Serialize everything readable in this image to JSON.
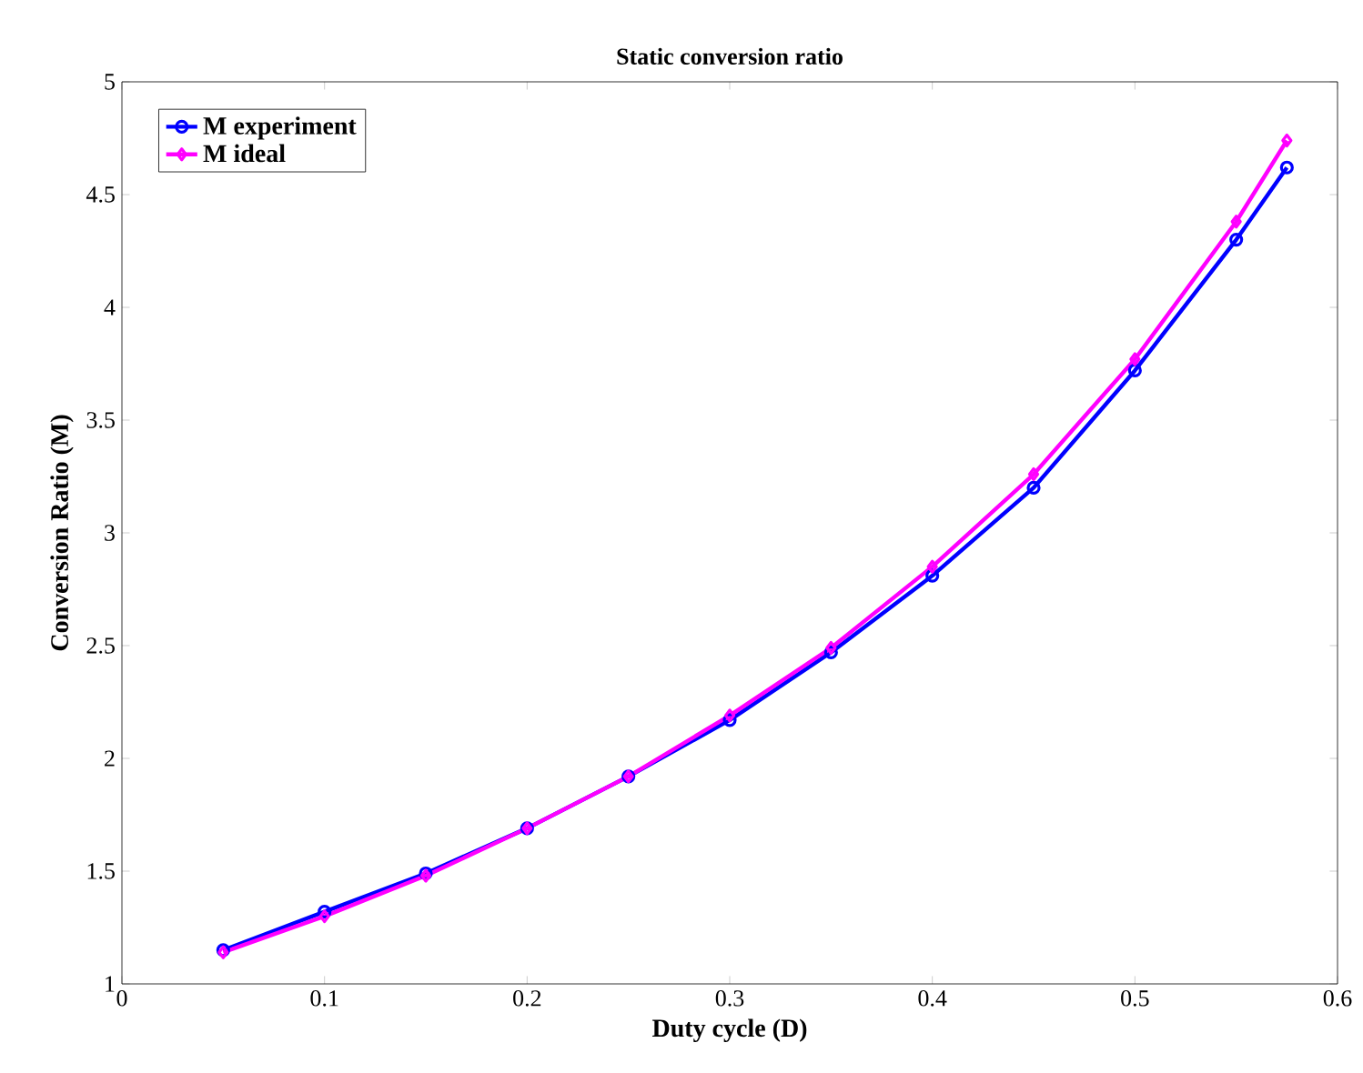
{
  "chart_data": {
    "type": "line",
    "title": "Static conversion ratio",
    "xlabel": "Duty cycle (D)",
    "ylabel": "Conversion Ratio (M)",
    "x": [
      0.05,
      0.1,
      0.15,
      0.2,
      0.25,
      0.3,
      0.35,
      0.4,
      0.45,
      0.5,
      0.55,
      0.575
    ],
    "series": [
      {
        "name": "M experiment",
        "color": "#0000ff",
        "marker": "circle",
        "values": [
          1.15,
          1.32,
          1.49,
          1.69,
          1.92,
          2.17,
          2.47,
          2.81,
          3.2,
          3.72,
          4.3,
          4.62
        ]
      },
      {
        "name": "M ideal",
        "color": "#ff00ff",
        "marker": "diamond",
        "values": [
          1.14,
          1.3,
          1.48,
          1.69,
          1.92,
          2.19,
          2.49,
          2.85,
          3.26,
          3.77,
          4.38,
          4.74
        ]
      }
    ],
    "xlim": [
      0,
      0.6
    ],
    "ylim": [
      1,
      5
    ],
    "xticks": [
      0,
      0.1,
      0.2,
      0.3,
      0.4,
      0.5,
      0.6
    ],
    "yticks": [
      1,
      1.5,
      2,
      2.5,
      3,
      3.5,
      4,
      4.5,
      5
    ],
    "grid": false,
    "legend": "top left",
    "line_style": "solid"
  }
}
